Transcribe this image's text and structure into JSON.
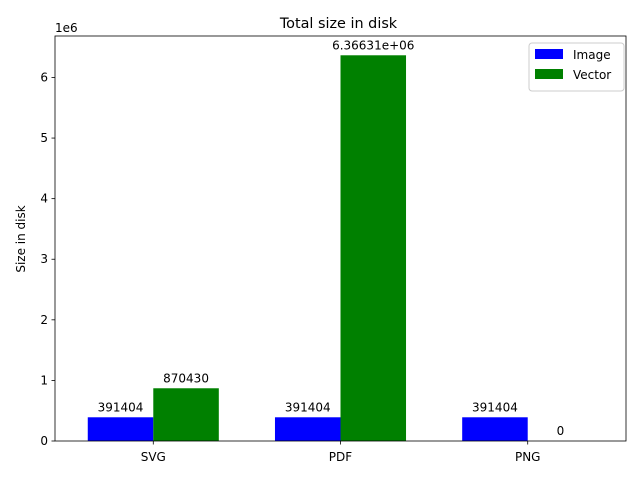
{
  "chart_data": {
    "type": "bar",
    "title": "Total size in disk",
    "xlabel": "",
    "ylabel": "Size in disk",
    "y_offset_label": "1e6",
    "y_scale": 1000000,
    "ylim": [
      0,
      6684625
    ],
    "yticks": [
      0,
      1000000,
      2000000,
      3000000,
      4000000,
      5000000,
      6000000
    ],
    "ytick_labels": [
      "0",
      "1",
      "2",
      "3",
      "4",
      "5",
      "6"
    ],
    "categories": [
      "SVG",
      "PDF",
      "PNG"
    ],
    "series": [
      {
        "name": "Image",
        "color": "#0000ff",
        "values": [
          391404,
          391404,
          391404
        ],
        "labels": [
          "391404",
          "391404",
          "391404"
        ]
      },
      {
        "name": "Vector",
        "color": "#008000",
        "values": [
          870430,
          6366310,
          0
        ],
        "labels": [
          "870430",
          "6.36631e+06",
          "0"
        ]
      }
    ],
    "legend_position": "top-right",
    "grid": false
  }
}
